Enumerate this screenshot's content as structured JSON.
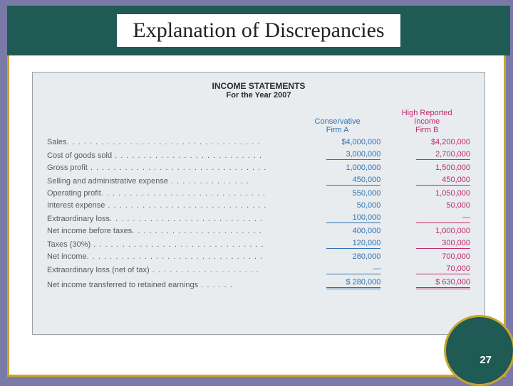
{
  "slide": {
    "title": "Explanation of Discrepancies",
    "page_number": "27"
  },
  "statement": {
    "heading": "INCOME STATEMENTS",
    "subheading": "For the Year 2007",
    "columnA_header_line1": "Conservative",
    "columnA_header_line2": "Firm A",
    "columnB_header_line1": "High Reported",
    "columnB_header_line2": "Income",
    "columnB_header_line3": "Firm B"
  },
  "rows": {
    "sales": {
      "label": "Sales",
      "a": "$4,000,000",
      "b": "$4,200,000"
    },
    "cogs": {
      "label": "Cost of goods sold",
      "a": "3,000,000",
      "b": "2,700,000"
    },
    "gross": {
      "label": "Gross profit",
      "a": "1,000,000",
      "b": "1,500,000"
    },
    "sga": {
      "label": "Selling and administrative expense",
      "a": "450,000",
      "b": "450,000"
    },
    "operating": {
      "label": "Operating profit",
      "a": "550,000",
      "b": "1,050,000"
    },
    "interest": {
      "label": "Interest expense",
      "a": "50,000",
      "b": "50,000"
    },
    "extraloss": {
      "label": "Extraordinary loss",
      "a": "100,000",
      "b": "—"
    },
    "nibt": {
      "label": "Net income before taxes",
      "a": "400,000",
      "b": "1,000,000"
    },
    "taxes": {
      "label": "Taxes (30%)",
      "a": "120,000",
      "b": "300,000"
    },
    "netincome": {
      "label": "Net income",
      "a": "280,000",
      "b": "700,000"
    },
    "extralossnet": {
      "label": "Extraordinary loss (net of tax)",
      "a": "—",
      "b": "70,000"
    },
    "transferred": {
      "label": "Net income transferred to retained earnings",
      "a": "$   280,000",
      "b": "$   630,000"
    }
  },
  "colors": {
    "outer_bg": "#7a7aa8",
    "frame_border": "#c9a62e",
    "title_band": "#1f5a54",
    "panel_bg": "#e8ecef",
    "colA": "#2f6fb0",
    "colB": "#c0276b",
    "label_text": "#5a5a5a"
  }
}
